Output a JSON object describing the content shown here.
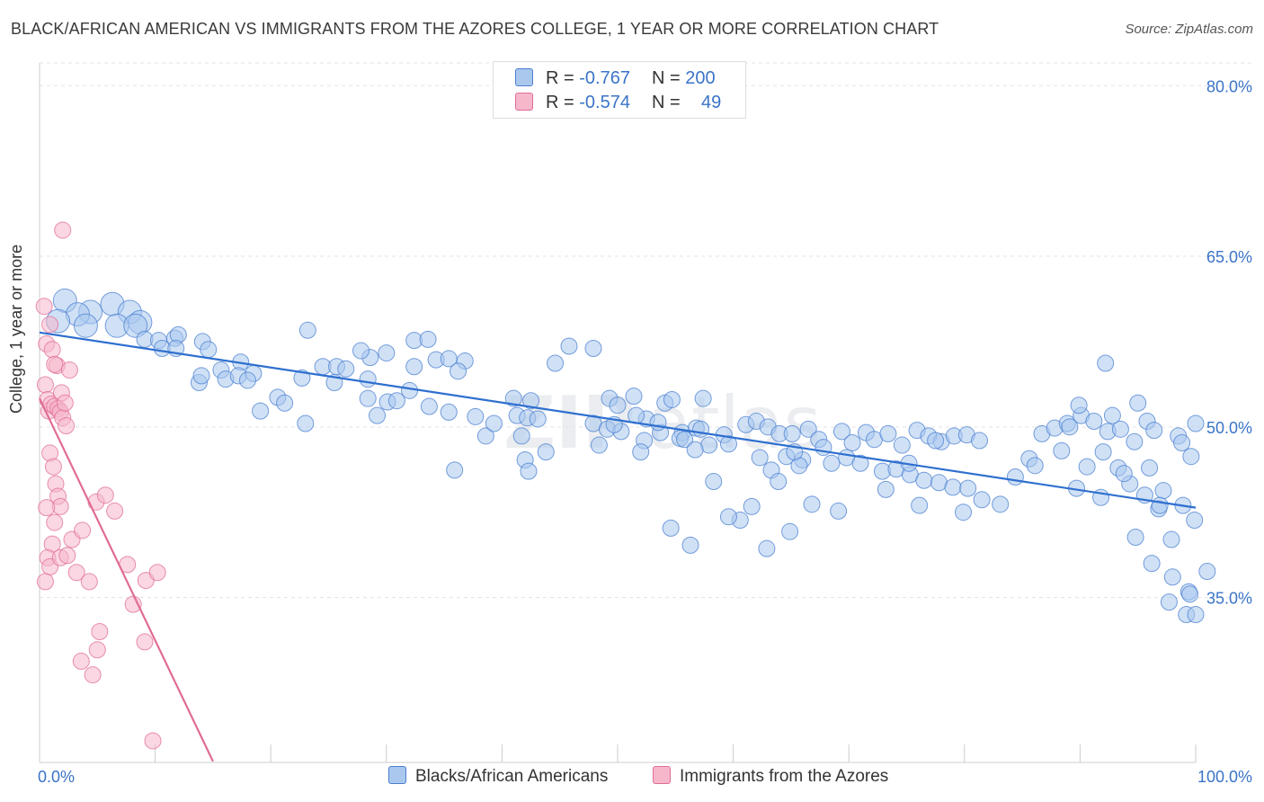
{
  "title": "BLACK/AFRICAN AMERICAN VS IMMIGRANTS FROM THE AZORES COLLEGE, 1 YEAR OR MORE CORRELATION CHART",
  "source": "Source: ZipAtlas.com",
  "colors": {
    "blue": "#4a7fd0",
    "blue_fill": "#aac8ee",
    "pink": "#e06c95",
    "pink_fill": "#f6b7cb",
    "axis_text": "#3a74c8"
  },
  "legend": {
    "rows": [
      {
        "r_label": "R = ",
        "r_value": "-0.767",
        "n_label": "N = ",
        "n_value": "200"
      },
      {
        "r_label": "R = ",
        "r_value": "-0.574",
        "n_label": "N = ",
        "n_value": "49"
      }
    ]
  },
  "bottom_legend": [
    "Blacks/African Americans",
    "Immigrants from the Azores"
  ],
  "chart_data": {
    "type": "scatter",
    "title": "BLACK/AFRICAN AMERICAN VS IMMIGRANTS FROM THE AZORES COLLEGE, 1 YEAR OR MORE CORRELATION CHART",
    "xlabel": "",
    "ylabel": "College, 1 year or more",
    "xlim": [
      0,
      100
    ],
    "ylim": [
      20.5,
      82
    ],
    "x_tick_labels": [
      "0.0%",
      "100.0%"
    ],
    "y_ticks": [
      35,
      50,
      65,
      80
    ],
    "y_tick_labels": [
      "35.0%",
      "50.0%",
      "65.0%",
      "80.0%"
    ],
    "grid": true,
    "legend_placement": "top-center",
    "series": [
      {
        "name": "Blacks/African Americans",
        "trend": {
          "x": [
            0,
            100
          ],
          "y": [
            58.3,
            42.9
          ]
        },
        "points": [
          [
            2.2,
            61.1
          ],
          [
            4.4,
            60.1
          ],
          [
            3.3,
            59.9
          ],
          [
            1.6,
            59.3
          ],
          [
            4.0,
            58.9
          ],
          [
            6.3,
            60.8
          ],
          [
            7.8,
            60.1
          ],
          [
            8.7,
            59.2
          ],
          [
            6.7,
            58.9
          ],
          [
            8.3,
            58.9
          ],
          [
            9.1,
            57.7
          ],
          [
            10.3,
            57.6
          ],
          [
            11.7,
            57.8
          ],
          [
            12.0,
            58.1
          ],
          [
            10.6,
            56.9
          ],
          [
            11.8,
            56.9
          ],
          [
            14.1,
            57.5
          ],
          [
            14.6,
            56.8
          ],
          [
            15.7,
            55.0
          ],
          [
            17.4,
            55.7
          ],
          [
            13.8,
            53.9
          ],
          [
            16.1,
            54.2
          ],
          [
            17.2,
            54.5
          ],
          [
            14.0,
            54.5
          ],
          [
            18.5,
            54.7
          ],
          [
            18.0,
            54.1
          ],
          [
            20.6,
            52.6
          ],
          [
            19.1,
            51.4
          ],
          [
            21.2,
            52.1
          ],
          [
            23.2,
            58.5
          ],
          [
            24.5,
            55.3
          ],
          [
            25.5,
            53.9
          ],
          [
            23.0,
            50.3
          ],
          [
            25.7,
            55.3
          ],
          [
            26.5,
            55.1
          ],
          [
            28.6,
            56.1
          ],
          [
            27.8,
            56.7
          ],
          [
            30.0,
            56.5
          ],
          [
            28.4,
            54.2
          ],
          [
            22.7,
            54.3
          ],
          [
            28.4,
            52.5
          ],
          [
            30.1,
            52.2
          ],
          [
            29.2,
            51.0
          ],
          [
            32.4,
            57.6
          ],
          [
            33.6,
            57.7
          ],
          [
            34.3,
            55.9
          ],
          [
            35.4,
            56.0
          ],
          [
            36.8,
            55.8
          ],
          [
            36.2,
            54.9
          ],
          [
            32.4,
            55.3
          ],
          [
            32.0,
            53.2
          ],
          [
            30.9,
            52.3
          ],
          [
            33.7,
            51.8
          ],
          [
            35.4,
            51.3
          ],
          [
            37.7,
            50.9
          ],
          [
            38.6,
            49.2
          ],
          [
            41.7,
            49.2
          ],
          [
            39.3,
            50.3
          ],
          [
            42.5,
            52.3
          ],
          [
            41.0,
            52.5
          ],
          [
            41.3,
            51.0
          ],
          [
            42.2,
            50.8
          ],
          [
            43.1,
            50.7
          ],
          [
            43.8,
            47.8
          ],
          [
            35.9,
            46.2
          ],
          [
            42.0,
            47.1
          ],
          [
            42.3,
            46.1
          ],
          [
            44.6,
            55.6
          ],
          [
            45.8,
            57.1
          ],
          [
            47.9,
            56.9
          ],
          [
            47.9,
            50.3
          ],
          [
            49.1,
            49.8
          ],
          [
            48.4,
            48.4
          ],
          [
            50.3,
            49.6
          ],
          [
            49.3,
            52.5
          ],
          [
            50.0,
            51.9
          ],
          [
            49.7,
            50.2
          ],
          [
            54.1,
            52.1
          ],
          [
            52.5,
            50.7
          ],
          [
            54.7,
            52.4
          ],
          [
            53.7,
            49.5
          ],
          [
            55.6,
            49.5
          ],
          [
            53.5,
            50.4
          ],
          [
            56.8,
            49.9
          ],
          [
            55.4,
            49.0
          ],
          [
            57.4,
            52.5
          ],
          [
            51.6,
            51.0
          ],
          [
            57.2,
            49.8
          ],
          [
            51.4,
            52.7
          ],
          [
            52.3,
            48.8
          ],
          [
            55.8,
            48.9
          ],
          [
            57.9,
            48.4
          ],
          [
            59.2,
            49.3
          ],
          [
            56.7,
            48.0
          ],
          [
            61.1,
            50.2
          ],
          [
            59.6,
            48.5
          ],
          [
            62.0,
            50.5
          ],
          [
            63.0,
            50.0
          ],
          [
            64.0,
            49.4
          ],
          [
            65.1,
            49.4
          ],
          [
            66.5,
            49.8
          ],
          [
            67.4,
            48.9
          ],
          [
            62.3,
            47.3
          ],
          [
            63.3,
            46.2
          ],
          [
            64.6,
            47.4
          ],
          [
            66.0,
            47.1
          ],
          [
            67.8,
            48.2
          ],
          [
            68.5,
            46.8
          ],
          [
            63.9,
            45.2
          ],
          [
            65.7,
            46.6
          ],
          [
            69.4,
            49.6
          ],
          [
            70.3,
            48.6
          ],
          [
            71.5,
            49.5
          ],
          [
            72.2,
            48.9
          ],
          [
            73.4,
            49.4
          ],
          [
            74.6,
            48.4
          ],
          [
            75.9,
            49.7
          ],
          [
            76.9,
            49.2
          ],
          [
            78.0,
            48.7
          ],
          [
            79.1,
            49.2
          ],
          [
            80.2,
            49.3
          ],
          [
            81.3,
            48.8
          ],
          [
            69.8,
            47.3
          ],
          [
            71.0,
            46.8
          ],
          [
            72.9,
            46.1
          ],
          [
            74.1,
            46.3
          ],
          [
            75.3,
            45.8
          ],
          [
            76.5,
            45.3
          ],
          [
            77.8,
            45.1
          ],
          [
            79.0,
            44.7
          ],
          [
            80.3,
            44.6
          ],
          [
            81.5,
            43.6
          ],
          [
            73.2,
            44.5
          ],
          [
            76.1,
            43.1
          ],
          [
            79.9,
            42.5
          ],
          [
            83.1,
            43.2
          ],
          [
            84.4,
            45.6
          ],
          [
            85.6,
            47.2
          ],
          [
            86.7,
            49.4
          ],
          [
            87.8,
            49.9
          ],
          [
            88.9,
            50.3
          ],
          [
            90.1,
            51.0
          ],
          [
            91.2,
            50.5
          ],
          [
            92.4,
            49.6
          ],
          [
            93.5,
            49.8
          ],
          [
            94.7,
            48.7
          ],
          [
            95.8,
            50.5
          ],
          [
            86.1,
            46.6
          ],
          [
            88.4,
            47.9
          ],
          [
            90.6,
            46.5
          ],
          [
            92.0,
            47.8
          ],
          [
            93.3,
            46.4
          ],
          [
            94.3,
            45.0
          ],
          [
            95.6,
            44.0
          ],
          [
            96.8,
            42.8
          ],
          [
            89.7,
            44.6
          ],
          [
            91.8,
            43.8
          ],
          [
            89.9,
            51.9
          ],
          [
            92.2,
            55.6
          ],
          [
            96.4,
            49.7
          ],
          [
            98.5,
            49.2
          ],
          [
            100.0,
            50.3
          ],
          [
            95.0,
            52.1
          ],
          [
            92.8,
            51.0
          ],
          [
            89.1,
            50.0
          ],
          [
            98.8,
            48.6
          ],
          [
            99.6,
            47.4
          ],
          [
            96.0,
            46.4
          ],
          [
            93.8,
            45.9
          ],
          [
            97.2,
            44.4
          ],
          [
            98.9,
            43.1
          ],
          [
            99.9,
            41.8
          ],
          [
            97.9,
            40.1
          ],
          [
            94.8,
            40.3
          ],
          [
            96.2,
            38.0
          ],
          [
            98.0,
            36.8
          ],
          [
            99.4,
            35.5
          ],
          [
            97.7,
            34.6
          ],
          [
            99.2,
            33.5
          ],
          [
            100.0,
            33.5
          ],
          [
            99.5,
            35.3
          ],
          [
            101.0,
            37.3
          ],
          [
            96.9,
            43.1
          ],
          [
            75.2,
            46.8
          ],
          [
            77.5,
            48.8
          ],
          [
            66.8,
            43.2
          ],
          [
            58.3,
            45.2
          ],
          [
            60.6,
            41.8
          ],
          [
            62.9,
            39.3
          ],
          [
            64.9,
            40.8
          ],
          [
            69.1,
            42.6
          ],
          [
            56.3,
            39.6
          ],
          [
            54.6,
            41.1
          ],
          [
            61.6,
            43.0
          ],
          [
            59.6,
            42.1
          ],
          [
            65.3,
            47.8
          ],
          [
            52.0,
            47.8
          ]
        ]
      },
      {
        "name": "Immigrants from the Azores",
        "trend": {
          "x": [
            0,
            15.0
          ],
          "y": [
            52.5,
            20.6
          ]
        },
        "points": [
          [
            0.4,
            60.6
          ],
          [
            0.6,
            57.3
          ],
          [
            0.9,
            59.0
          ],
          [
            0.5,
            53.7
          ],
          [
            0.7,
            52.4
          ],
          [
            0.8,
            51.4
          ],
          [
            1.0,
            52.0
          ],
          [
            1.3,
            51.8
          ],
          [
            1.6,
            51.6
          ],
          [
            1.8,
            51.3
          ],
          [
            2.0,
            50.8
          ],
          [
            2.3,
            50.1
          ],
          [
            1.1,
            56.8
          ],
          [
            1.5,
            55.4
          ],
          [
            2.6,
            55.0
          ],
          [
            1.9,
            53.0
          ],
          [
            2.2,
            52.1
          ],
          [
            0.9,
            47.7
          ],
          [
            1.2,
            46.5
          ],
          [
            1.4,
            45.0
          ],
          [
            1.6,
            43.9
          ],
          [
            1.8,
            43.0
          ],
          [
            0.6,
            42.9
          ],
          [
            1.3,
            41.6
          ],
          [
            1.1,
            39.7
          ],
          [
            0.7,
            38.5
          ],
          [
            0.9,
            37.7
          ],
          [
            0.5,
            36.4
          ],
          [
            1.8,
            38.5
          ],
          [
            2.8,
            40.1
          ],
          [
            2.4,
            38.7
          ],
          [
            3.2,
            37.2
          ],
          [
            4.3,
            36.4
          ],
          [
            4.9,
            43.4
          ],
          [
            5.7,
            44.0
          ],
          [
            6.5,
            42.6
          ],
          [
            3.7,
            40.9
          ],
          [
            7.6,
            37.9
          ],
          [
            9.2,
            36.5
          ],
          [
            10.2,
            37.2
          ],
          [
            8.1,
            34.4
          ],
          [
            9.1,
            31.1
          ],
          [
            5.0,
            30.4
          ],
          [
            3.6,
            29.4
          ],
          [
            4.6,
            28.2
          ],
          [
            5.2,
            32.0
          ],
          [
            9.8,
            22.4
          ],
          [
            2.0,
            67.3
          ],
          [
            1.3,
            55.5
          ]
        ]
      }
    ]
  }
}
